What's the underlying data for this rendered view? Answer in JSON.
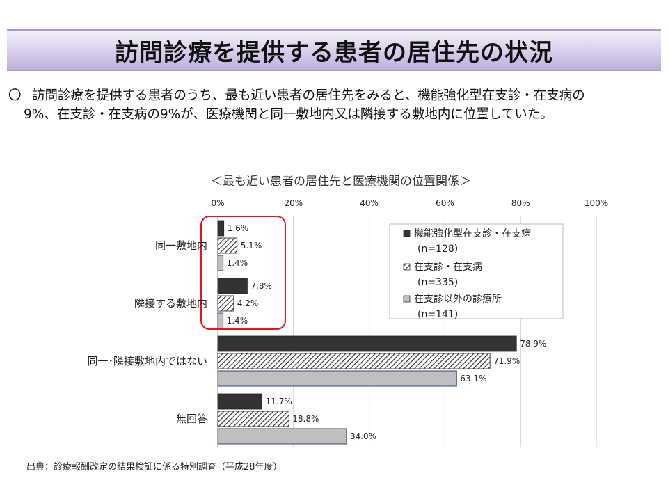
{
  "page": {
    "title": "訪問診療を提供する患者の居住先の状況",
    "summary": {
      "marker": "〇",
      "line1": "訪問診療を提供する患者のうち、最も近い患者の居住先をみると、機能強化型在支診・在支病の",
      "line2": "9%、在支診・在支病の9%が、医療機関と同一敷地内又は隣接する敷地内に位置していた。"
    },
    "chart_title": "＜最も近い患者の居住先と医療機関の位置関係＞",
    "source": "出典：診療報酬改定の結果検証に係る特別調査（平成28年度）"
  },
  "chart_data": {
    "type": "bar",
    "orientation": "horizontal",
    "categories": [
      "同一敷地内",
      "隣接する敷地内",
      "同一･隣接敷地内ではない",
      "無回答"
    ],
    "series": [
      {
        "name": "機能強化型在支診・在支病",
        "n": "(n=128)",
        "values": [
          1.6,
          7.8,
          78.9,
          11.7
        ],
        "color": "#333333",
        "pattern": "solid"
      },
      {
        "name": "在支診・在支病",
        "n": "(n=335)",
        "values": [
          5.1,
          4.2,
          71.9,
          18.8
        ],
        "color": "#333333",
        "pattern": "hatch"
      },
      {
        "name": "在支診以外の診療所",
        "n": "(n=141)",
        "values": [
          1.4,
          1.4,
          63.1,
          34.0
        ],
        "color": "#bfbfbf",
        "pattern": "solid"
      }
    ],
    "value_labels": [
      [
        "1.6%",
        "7.8%",
        "78.9%",
        "11.7%"
      ],
      [
        "5.1%",
        "4.2%",
        "71.9%",
        "18.8%"
      ],
      [
        "1.4%",
        "1.4%",
        "63.1%",
        "34.0%"
      ]
    ],
    "xticks": [
      "0%",
      "20%",
      "40%",
      "60%",
      "80%",
      "100%"
    ],
    "xlim": [
      0,
      100
    ],
    "grid": true,
    "legend_position": "right",
    "highlight": {
      "categories": [
        0,
        1
      ],
      "color": "#e8141e"
    }
  }
}
